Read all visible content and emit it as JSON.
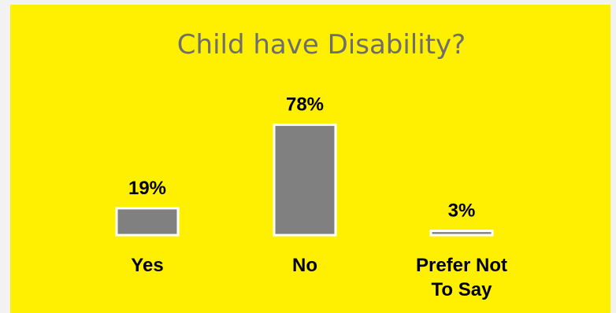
{
  "chart_data": {
    "type": "bar",
    "title": "Child have Disability?",
    "categories": [
      [
        "Yes"
      ],
      [
        "No"
      ],
      [
        "Prefer Not",
        "To Say"
      ]
    ],
    "values": [
      19,
      78,
      3
    ],
    "value_labels": [
      "19%",
      "78%",
      "3%"
    ],
    "ylim": [
      0,
      100
    ],
    "grid": false,
    "legend": "none",
    "colors": {
      "background": "#ffef00",
      "bar_fill": "#808080",
      "bar_stroke": "#ffffff",
      "title": "#6e6e6e",
      "labels": "#000000"
    }
  }
}
